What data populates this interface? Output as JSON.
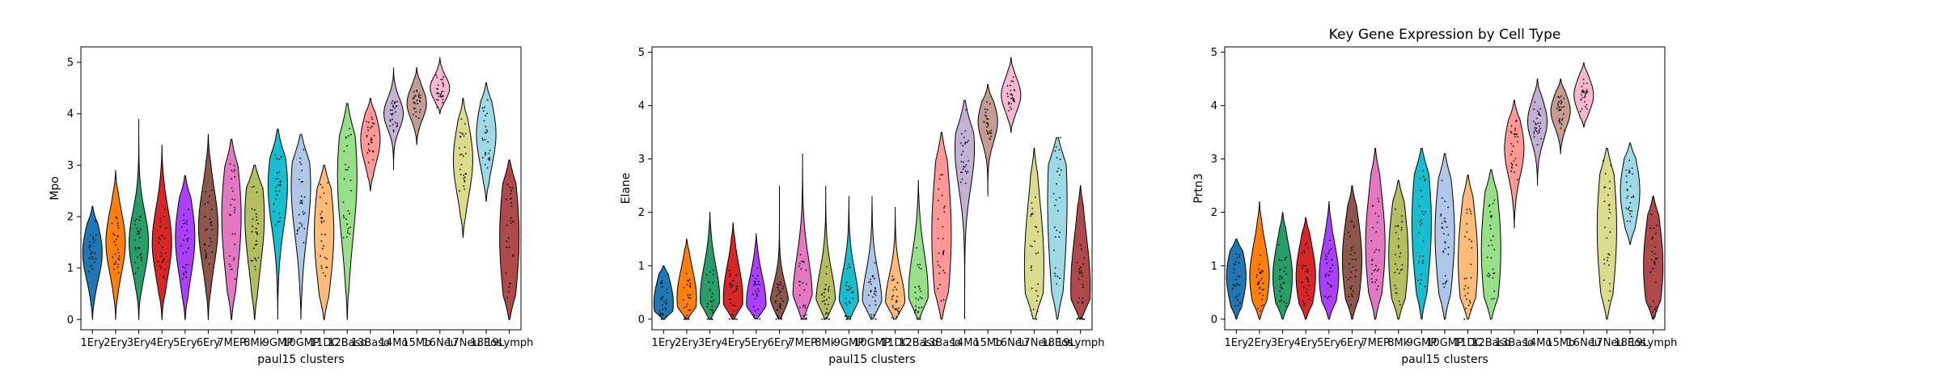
{
  "figure": {
    "xlabel": "paul15 clusters",
    "palette": [
      "#1f77b4",
      "#ff7f0e",
      "#279e68",
      "#d62728",
      "#aa40fc",
      "#8c564b",
      "#e377c2",
      "#b5bd61",
      "#17becf",
      "#aec7e8",
      "#ffbb78",
      "#98df8a",
      "#ff9896",
      "#c5b0d5",
      "#c49c94",
      "#f7b6d2",
      "#dbdb8d",
      "#9edae5",
      "#ad494a"
    ]
  },
  "chart_data": [
    {
      "type": "violin",
      "title": "",
      "xlabel": "paul15 clusters",
      "ylabel": "Mpo",
      "ylim": [
        -0.2,
        5.3
      ],
      "yticks": [
        0,
        1,
        2,
        3,
        4,
        5
      ],
      "categories": [
        "1Ery",
        "2Ery",
        "3Ery",
        "4Ery",
        "5Ery",
        "6Ery",
        "7MEP",
        "8Mk",
        "9GMP",
        "10GMP",
        "11DC",
        "12Baso",
        "13Baso",
        "14Mo",
        "15Mo",
        "16Neu",
        "17Neu",
        "18Eos",
        "19Lymph"
      ],
      "series": [
        {
          "min": 0.0,
          "max": 2.2,
          "median": 1.3,
          "q1": 1.0,
          "q3": 1.7
        },
        {
          "min": 0.0,
          "max": 2.9,
          "median": 1.5,
          "q1": 1.1,
          "q3": 1.9
        },
        {
          "min": 0.0,
          "max": 3.9,
          "median": 1.5,
          "q1": 1.1,
          "q3": 1.9
        },
        {
          "min": 0.0,
          "max": 3.4,
          "median": 1.5,
          "q1": 1.0,
          "q3": 1.9
        },
        {
          "min": 0.0,
          "max": 2.8,
          "median": 1.6,
          "q1": 1.0,
          "q3": 2.0
        },
        {
          "min": 0.0,
          "max": 3.6,
          "median": 1.8,
          "q1": 1.3,
          "q3": 2.3
        },
        {
          "min": 0.0,
          "max": 3.5,
          "median": 2.0,
          "q1": 1.2,
          "q3": 2.7
        },
        {
          "min": 0.0,
          "max": 3.0,
          "median": 2.0,
          "q1": 1.2,
          "q3": 2.5
        },
        {
          "min": 0.0,
          "max": 3.7,
          "median": 2.6,
          "q1": 2.0,
          "q3": 3.1
        },
        {
          "min": 0.0,
          "max": 3.6,
          "median": 2.6,
          "q1": 1.8,
          "q3": 3.1
        },
        {
          "min": 0.0,
          "max": 3.0,
          "median": 1.7,
          "q1": 1.0,
          "q3": 2.4
        },
        {
          "min": 0.0,
          "max": 4.2,
          "median": 2.8,
          "q1": 1.8,
          "q3": 3.4
        },
        {
          "min": 2.5,
          "max": 4.3,
          "median": 3.5,
          "q1": 3.2,
          "q3": 3.8
        },
        {
          "min": 2.9,
          "max": 4.9,
          "median": 4.0,
          "q1": 3.8,
          "q3": 4.2
        },
        {
          "min": 3.4,
          "max": 4.9,
          "median": 4.2,
          "q1": 4.0,
          "q3": 4.4
        },
        {
          "min": 4.0,
          "max": 5.1,
          "median": 4.5,
          "q1": 4.3,
          "q3": 4.6
        },
        {
          "min": 1.6,
          "max": 4.3,
          "median": 3.1,
          "q1": 2.7,
          "q3": 3.6
        },
        {
          "min": 2.3,
          "max": 4.6,
          "median": 3.6,
          "q1": 3.2,
          "q3": 4.0
        },
        {
          "min": 0.0,
          "max": 3.1,
          "median": 1.6,
          "q1": 0.8,
          "q3": 2.4
        }
      ]
    },
    {
      "type": "violin",
      "title": "",
      "xlabel": "paul15 clusters",
      "ylabel": "Elane",
      "ylim": [
        -0.2,
        5.1
      ],
      "yticks": [
        0,
        1,
        2,
        3,
        4,
        5
      ],
      "categories": [
        "1Ery",
        "2Ery",
        "3Ery",
        "4Ery",
        "5Ery",
        "6Ery",
        "7MEP",
        "8Mk",
        "9GMP",
        "10GMP",
        "11DC",
        "12Baso",
        "13Baso",
        "14Mo",
        "15Mo",
        "16Neu",
        "17Neu",
        "18Eos",
        "19Lymph"
      ],
      "series": [
        {
          "min": 0.0,
          "max": 1.0,
          "median": 0.3,
          "q1": 0.0,
          "q3": 0.6
        },
        {
          "min": 0.0,
          "max": 1.5,
          "median": 0.4,
          "q1": 0.0,
          "q3": 0.7
        },
        {
          "min": 0.0,
          "max": 2.0,
          "median": 0.4,
          "q1": 0.0,
          "q3": 0.8
        },
        {
          "min": 0.0,
          "max": 1.8,
          "median": 0.4,
          "q1": 0.0,
          "q3": 0.8
        },
        {
          "min": 0.0,
          "max": 1.6,
          "median": 0.3,
          "q1": 0.0,
          "q3": 0.7
        },
        {
          "min": 0.0,
          "max": 2.5,
          "median": 0.2,
          "q1": 0.0,
          "q3": 0.6
        },
        {
          "min": 0.0,
          "max": 3.1,
          "median": 0.4,
          "q1": 0.0,
          "q3": 1.0
        },
        {
          "min": 0.0,
          "max": 2.5,
          "median": 0.3,
          "q1": 0.0,
          "q3": 0.8
        },
        {
          "min": 0.0,
          "max": 2.3,
          "median": 0.3,
          "q1": 0.0,
          "q3": 0.8
        },
        {
          "min": 0.0,
          "max": 2.3,
          "median": 0.3,
          "q1": 0.0,
          "q3": 0.8
        },
        {
          "min": 0.0,
          "max": 2.1,
          "median": 0.3,
          "q1": 0.0,
          "q3": 0.7
        },
        {
          "min": 0.0,
          "max": 2.6,
          "median": 0.5,
          "q1": 0.0,
          "q3": 1.0
        },
        {
          "min": 0.0,
          "max": 3.5,
          "median": 1.6,
          "q1": 0.6,
          "q3": 2.4
        },
        {
          "min": 0.0,
          "max": 4.1,
          "median": 3.2,
          "q1": 2.6,
          "q3": 3.6
        },
        {
          "min": 2.3,
          "max": 4.4,
          "median": 3.7,
          "q1": 3.4,
          "q3": 3.9
        },
        {
          "min": 3.5,
          "max": 4.9,
          "median": 4.2,
          "q1": 4.0,
          "q3": 4.4
        },
        {
          "min": 0.0,
          "max": 3.2,
          "median": 1.0,
          "q1": 0.3,
          "q3": 1.9
        },
        {
          "min": 0.0,
          "max": 3.4,
          "median": 2.2,
          "q1": 0.8,
          "q3": 3.0
        },
        {
          "min": 0.0,
          "max": 2.5,
          "median": 0.6,
          "q1": 0.0,
          "q3": 1.3
        }
      ]
    },
    {
      "type": "violin",
      "title": "Key Gene Expression by Cell Type",
      "xlabel": "paul15 clusters",
      "ylabel": "Prtn3",
      "ylim": [
        -0.2,
        5.1
      ],
      "yticks": [
        0,
        1,
        2,
        3,
        4,
        5
      ],
      "categories": [
        "1Ery",
        "2Ery",
        "3Ery",
        "4Ery",
        "5Ery",
        "6Ery",
        "7MEP",
        "8Mk",
        "9GMP",
        "10GMP",
        "11DC",
        "12Baso",
        "13Baso",
        "14Mo",
        "15Mo",
        "16Neu",
        "17Neu",
        "18Eos",
        "19Lymph"
      ],
      "series": [
        {
          "min": 0.0,
          "max": 1.5,
          "median": 0.8,
          "q1": 0.4,
          "q3": 1.1
        },
        {
          "min": 0.0,
          "max": 2.2,
          "median": 0.8,
          "q1": 0.4,
          "q3": 1.2
        },
        {
          "min": 0.0,
          "max": 2.0,
          "median": 0.8,
          "q1": 0.4,
          "q3": 1.2
        },
        {
          "min": 0.0,
          "max": 1.9,
          "median": 0.8,
          "q1": 0.4,
          "q3": 1.2
        },
        {
          "min": 0.0,
          "max": 2.2,
          "median": 0.8,
          "q1": 0.4,
          "q3": 1.2
        },
        {
          "min": 0.0,
          "max": 2.5,
          "median": 1.1,
          "q1": 0.5,
          "q3": 1.6
        },
        {
          "min": 0.0,
          "max": 3.2,
          "median": 1.4,
          "q1": 0.6,
          "q3": 2.0
        },
        {
          "min": 0.0,
          "max": 2.6,
          "median": 1.2,
          "q1": 0.5,
          "q3": 1.8
        },
        {
          "min": 0.0,
          "max": 3.2,
          "median": 1.8,
          "q1": 0.9,
          "q3": 2.5
        },
        {
          "min": 0.0,
          "max": 3.1,
          "median": 1.6,
          "q1": 0.8,
          "q3": 2.3
        },
        {
          "min": 0.0,
          "max": 2.7,
          "median": 1.1,
          "q1": 0.4,
          "q3": 1.8
        },
        {
          "min": 0.0,
          "max": 2.8,
          "median": 1.3,
          "q1": 0.5,
          "q3": 2.0
        },
        {
          "min": 1.7,
          "max": 4.1,
          "median": 3.2,
          "q1": 2.8,
          "q3": 3.5
        },
        {
          "min": 2.5,
          "max": 4.5,
          "median": 3.7,
          "q1": 3.4,
          "q3": 3.9
        },
        {
          "min": 3.1,
          "max": 4.5,
          "median": 3.9,
          "q1": 3.7,
          "q3": 4.1
        },
        {
          "min": 3.6,
          "max": 4.8,
          "median": 4.2,
          "q1": 4.0,
          "q3": 4.4
        },
        {
          "min": 0.0,
          "max": 3.2,
          "median": 1.7,
          "q1": 0.8,
          "q3": 2.5
        },
        {
          "min": 1.4,
          "max": 3.3,
          "median": 2.4,
          "q1": 2.0,
          "q3": 2.8
        },
        {
          "min": 0.0,
          "max": 2.3,
          "median": 1.0,
          "q1": 0.4,
          "q3": 1.6
        }
      ]
    }
  ]
}
